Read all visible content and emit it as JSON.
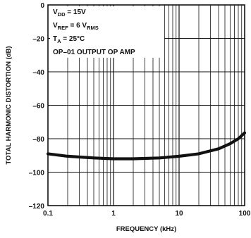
{
  "chart_data": {
    "type": "line",
    "xlabel": "FREQUENCY (kHz)",
    "ylabel": "TOTAL HARMONIC DISTORTION (dB)",
    "x_scale": "log",
    "xlim": [
      0.1,
      100
    ],
    "ylim": [
      -120,
      0
    ],
    "x_ticks": [
      {
        "value": 0.1,
        "label": "0.1"
      },
      {
        "value": 1,
        "label": "1"
      },
      {
        "value": 10,
        "label": "10"
      },
      {
        "value": 100,
        "label": "100"
      }
    ],
    "y_ticks": [
      {
        "value": 0,
        "label": "0"
      },
      {
        "value": -20,
        "label": "–20"
      },
      {
        "value": -40,
        "label": "–40"
      },
      {
        "value": -60,
        "label": "–60"
      },
      {
        "value": -80,
        "label": "–80"
      },
      {
        "value": -100,
        "label": "–100"
      },
      {
        "value": -120,
        "label": "–120"
      }
    ],
    "grid": true,
    "annotations": [
      {
        "main": "V",
        "sub": "DD",
        "rest": " = 15V"
      },
      {
        "main": "V",
        "sub": "REF",
        "rest": " = 6 V",
        "sub2": "RMS"
      },
      {
        "main": "T",
        "sub": "A",
        "rest": " = 25°C"
      },
      {
        "main": "OP–01 OUTPUT OP AMP",
        "sub": "",
        "rest": ""
      }
    ],
    "series": [
      {
        "x": [
          0.1,
          0.2,
          0.5,
          1,
          2,
          5,
          10,
          20,
          40,
          60,
          80,
          100
        ],
        "y": [
          -89,
          -90.5,
          -91.5,
          -92,
          -92,
          -91.5,
          -90.5,
          -89,
          -86,
          -83,
          -80,
          -76.5
        ]
      }
    ]
  }
}
